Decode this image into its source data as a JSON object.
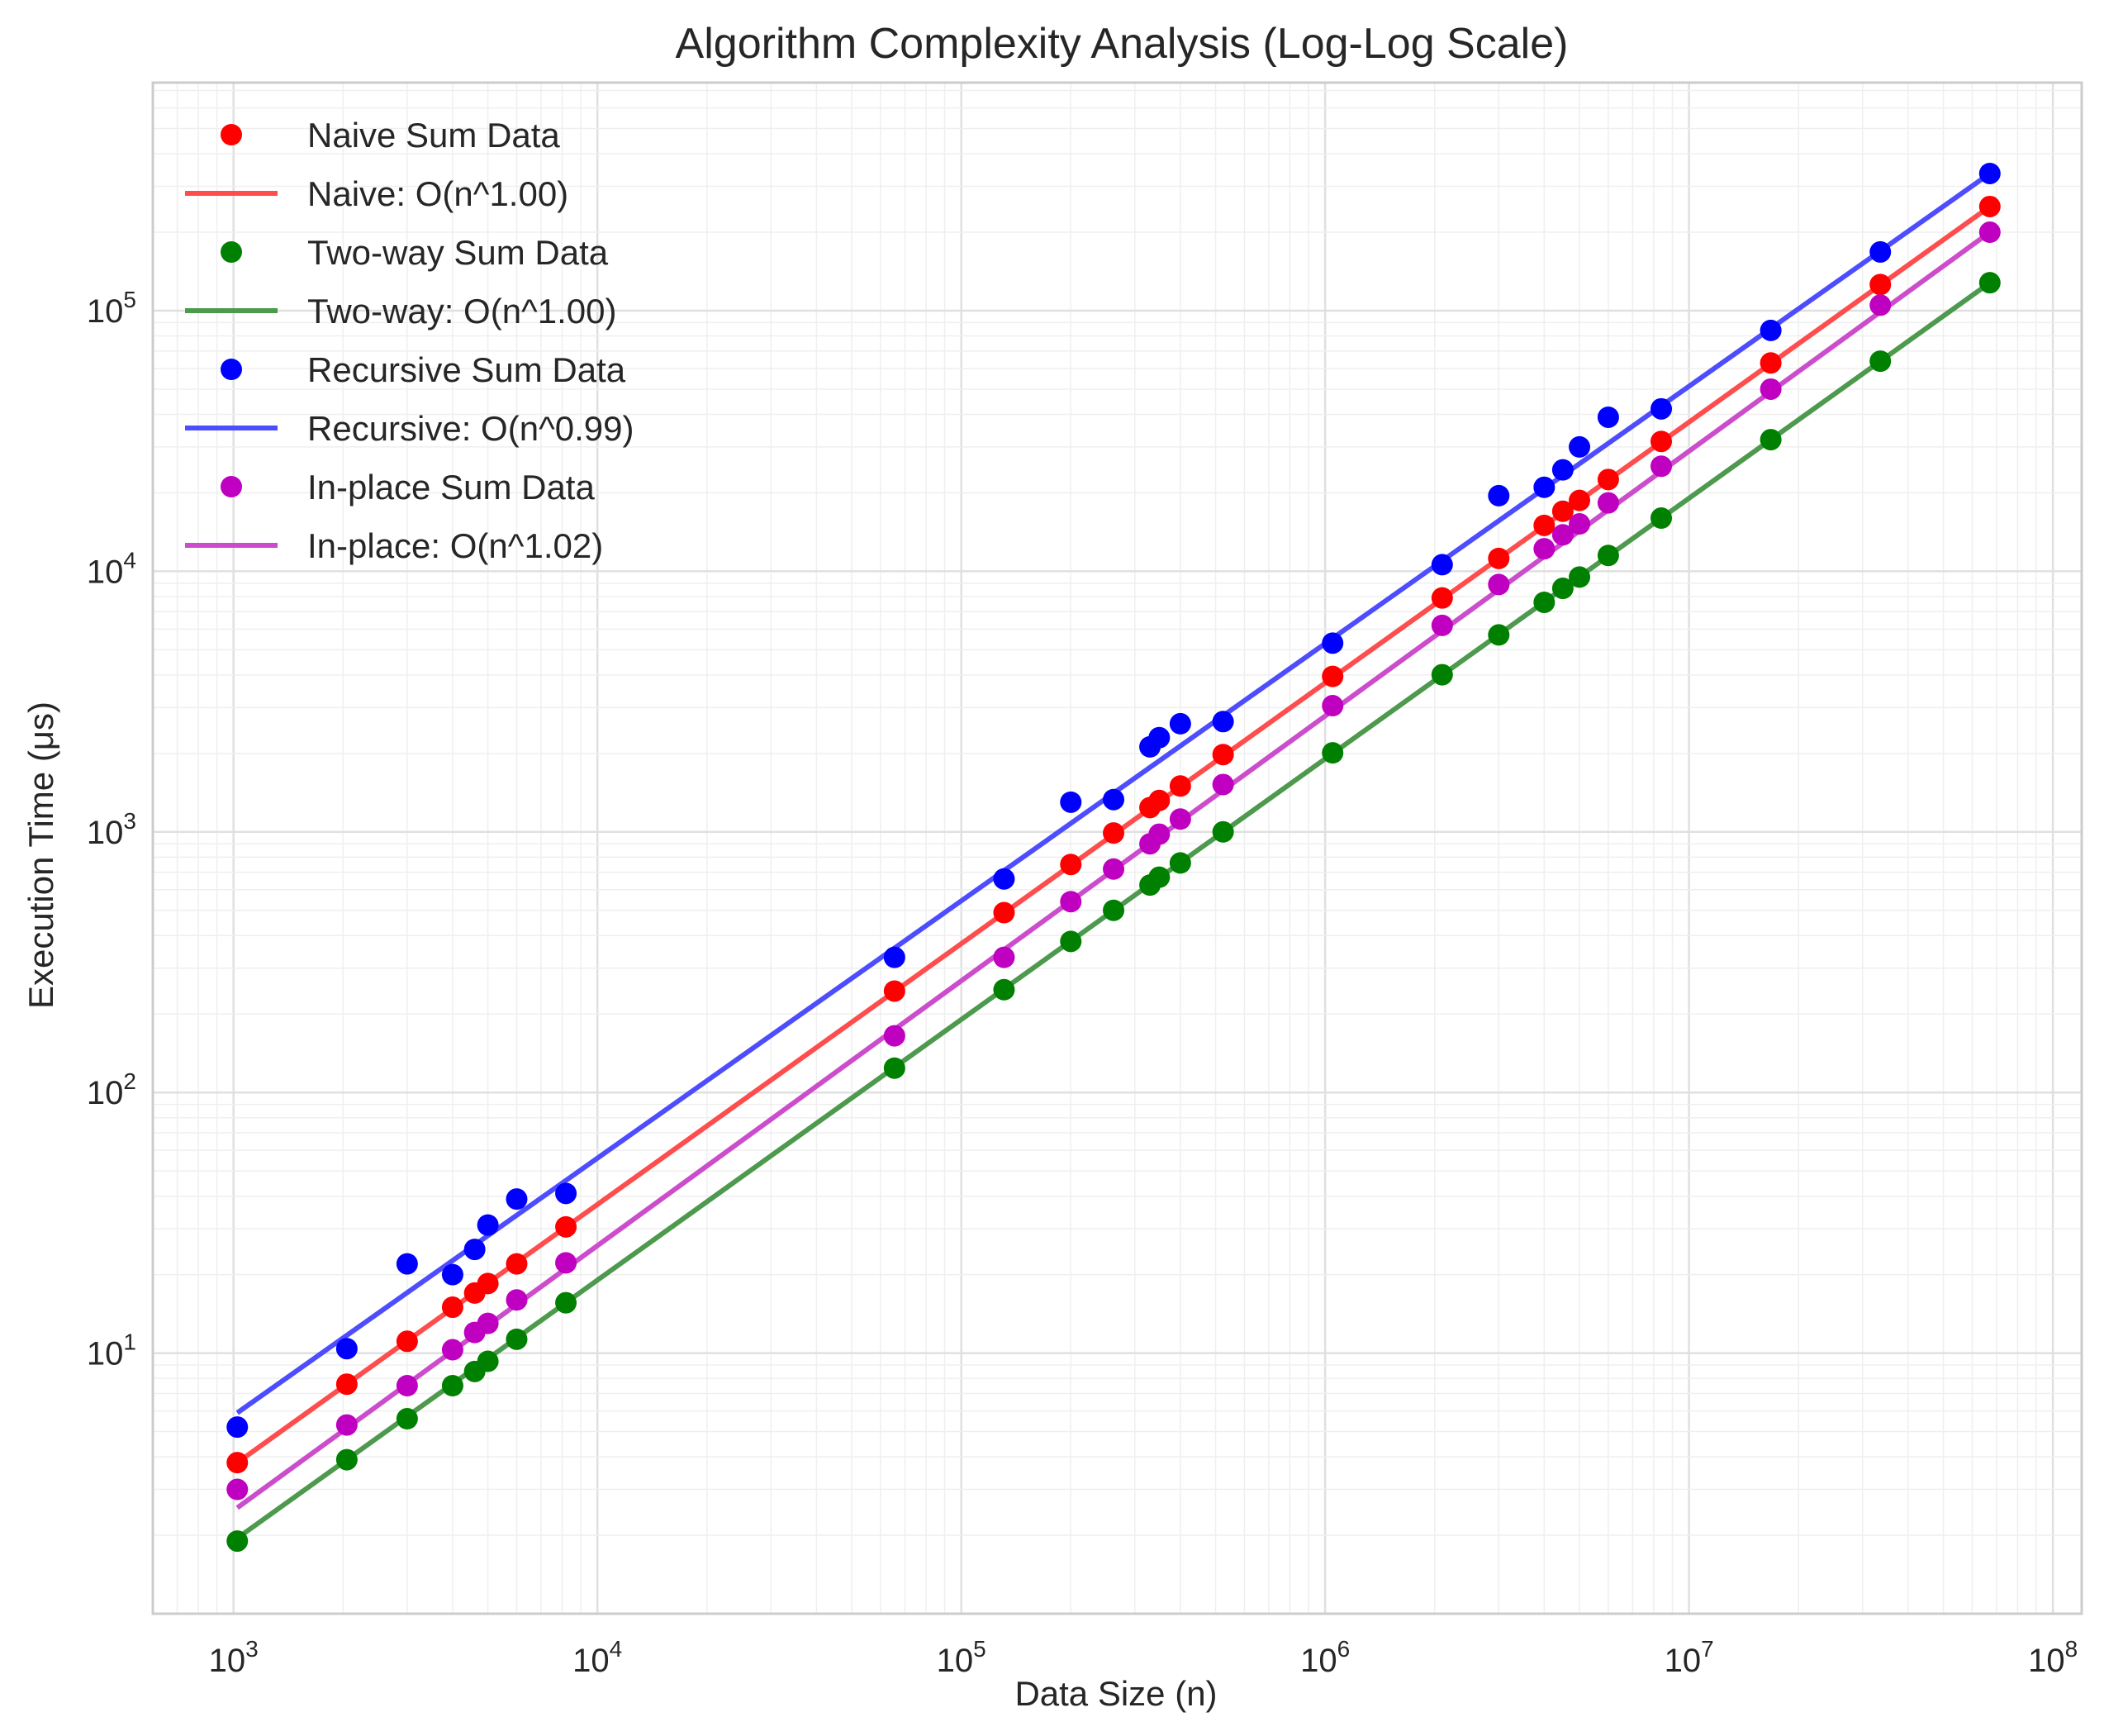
{
  "chart_data": {
    "type": "scatter",
    "title": "Algorithm Complexity Analysis (Log-Log Scale)",
    "xlabel": "Data Size (n)",
    "ylabel": "Execution Time (μs)",
    "xscale": "log",
    "yscale": "log",
    "xlim": [
      600,
      120000000
    ],
    "ylim": [
      1.0,
      750000
    ],
    "grid": true,
    "legend_position": "top-left",
    "x_ticks": [
      {
        "mant": "10",
        "exp": "3",
        "value": 1000
      },
      {
        "mant": "10",
        "exp": "4",
        "value": 10000
      },
      {
        "mant": "10",
        "exp": "5",
        "value": 100000
      },
      {
        "mant": "10",
        "exp": "6",
        "value": 1000000
      },
      {
        "mant": "10",
        "exp": "7",
        "value": 10000000
      },
      {
        "mant": "10",
        "exp": "8",
        "value": 100000000
      }
    ],
    "y_ticks": [
      {
        "mant": "10",
        "exp": "1",
        "value": 10
      },
      {
        "mant": "10",
        "exp": "2",
        "value": 100
      },
      {
        "mant": "10",
        "exp": "3",
        "value": 1000
      },
      {
        "mant": "10",
        "exp": "4",
        "value": 10000
      },
      {
        "mant": "10",
        "exp": "5",
        "value": 100000
      }
    ],
    "series": [
      {
        "name": "Naive Sum Data",
        "fit_name": "Naive: O(n^1.00)",
        "color": "#ff0000",
        "fit_color": "#ff4d4d",
        "x": [
          1024,
          2048,
          3000,
          4000,
          4600,
          5000,
          6000,
          8192,
          65536,
          131072,
          200000,
          262144,
          330000,
          350000,
          400000,
          524288,
          1048576,
          2097152,
          3000000,
          4000000,
          4500000,
          5000000,
          6000000,
          8388608,
          16777216,
          33554432,
          67108864
        ],
        "y": [
          3.8,
          7.6,
          11.1,
          15.0,
          17.0,
          18.5,
          22.0,
          30.5,
          245,
          490,
          750,
          990,
          1240,
          1320,
          1500,
          1980,
          3950,
          7900,
          11200,
          15000,
          17000,
          18700,
          22500,
          31500,
          63000,
          126000,
          251000
        ],
        "fit": {
          "x": [
            1024,
            67108864
          ],
          "y": [
            3.8,
            251000
          ]
        }
      },
      {
        "name": "Two-way Sum Data",
        "fit_name": "Two-way: O(n^1.00)",
        "color": "#008000",
        "fit_color": "#4d994d",
        "x": [
          1024,
          2048,
          3000,
          4000,
          4600,
          5000,
          6000,
          8192,
          65536,
          131072,
          200000,
          262144,
          330000,
          350000,
          400000,
          524288,
          1048576,
          2097152,
          3000000,
          4000000,
          4500000,
          5000000,
          6000000,
          8388608,
          16777216,
          33554432,
          67108864
        ],
        "y": [
          1.9,
          3.9,
          5.6,
          7.5,
          8.5,
          9.3,
          11.3,
          15.6,
          124,
          248,
          380,
          500,
          625,
          670,
          760,
          1000,
          2010,
          4010,
          5700,
          7600,
          8600,
          9500,
          11500,
          16000,
          32000,
          64000,
          128000
        ],
        "fit": {
          "x": [
            1024,
            67108864
          ],
          "y": [
            1.95,
            128000
          ]
        }
      },
      {
        "name": "Recursive Sum Data",
        "fit_name": "Recursive: O(n^0.99)",
        "color": "#0000ff",
        "fit_color": "#4d4dff",
        "x": [
          1024,
          2048,
          3000,
          4000,
          4600,
          5000,
          6000,
          8192,
          65536,
          131072,
          200000,
          262144,
          330000,
          350000,
          400000,
          524288,
          1048576,
          2097152,
          3000000,
          4000000,
          4500000,
          5000000,
          6000000,
          8388608,
          16777216,
          33554432,
          67108864
        ],
        "y": [
          5.2,
          10.4,
          22.0,
          20.0,
          25.0,
          31.0,
          39.0,
          41.0,
          330,
          660,
          1300,
          1330,
          2120,
          2300,
          2600,
          2650,
          5300,
          10600,
          19500,
          21000,
          24500,
          30000,
          39000,
          42000,
          84000,
          168000,
          336000
        ],
        "fit": {
          "x": [
            1024,
            67108864
          ],
          "y": [
            5.9,
            336000
          ]
        }
      },
      {
        "name": "In-place Sum Data",
        "fit_name": "In-place: O(n^1.02)",
        "color": "#c000c0",
        "fit_color": "#cc4dcc",
        "x": [
          1024,
          2048,
          3000,
          4000,
          4600,
          5000,
          6000,
          8192,
          65536,
          131072,
          200000,
          262144,
          330000,
          350000,
          400000,
          524288,
          1048576,
          2097152,
          3000000,
          4000000,
          4500000,
          5000000,
          6000000,
          8388608,
          16777216,
          33554432,
          67108864
        ],
        "y": [
          3.0,
          5.3,
          7.5,
          10.3,
          12.0,
          13.0,
          16.0,
          22.2,
          165,
          330,
          540,
          720,
          900,
          980,
          1120,
          1520,
          3050,
          6200,
          8900,
          12200,
          13800,
          15200,
          18300,
          25300,
          50000,
          105000,
          200000
        ],
        "fit": {
          "x": [
            1024,
            67108864
          ],
          "y": [
            2.55,
            200000
          ]
        }
      }
    ]
  }
}
